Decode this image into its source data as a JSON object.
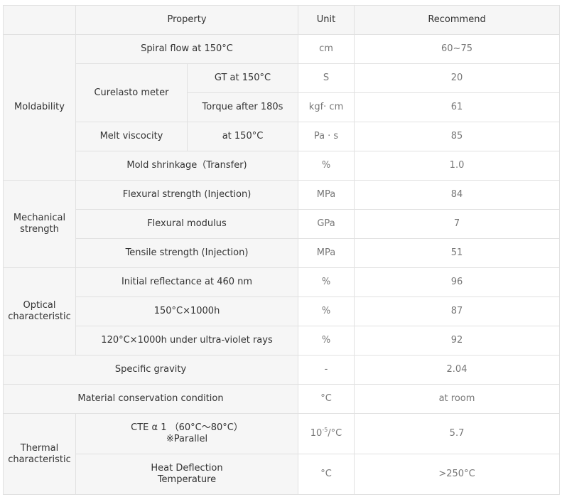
{
  "header": {
    "property": "Property",
    "unit": "Unit",
    "recommend": "Recommend"
  },
  "groups": {
    "moldability": "Moldability",
    "mechanical": "Mechanical\nstrength",
    "optical": "Optical\ncharacteristic",
    "thermal": "Thermal\ncharacteristic"
  },
  "rows": {
    "spiral": {
      "property": "Spiral flow at 150°C",
      "unit": "cm",
      "value": "60~75"
    },
    "curelasto": {
      "label": "Curelasto meter"
    },
    "gt": {
      "property": "GT at 150°C",
      "unit": "S",
      "value": "20"
    },
    "torque": {
      "property": "Torque after 180s",
      "unit": "kgf· cm",
      "value": "61"
    },
    "melt": {
      "label": "Melt viscocity",
      "property": "at 150°C",
      "unit": "Pa · s",
      "value": "85"
    },
    "shrink": {
      "property": "Mold shrinkage（Transfer)",
      "unit": "%",
      "value": "1.0"
    },
    "flex_strength": {
      "property": "Flexural strength (Injection)",
      "unit": "MPa",
      "value": "84"
    },
    "flex_modulus": {
      "property": "Flexural modulus",
      "unit": "GPa",
      "value": "7"
    },
    "tensile": {
      "property": "Tensile strength (Injection)",
      "unit": "MPa",
      "value": "51"
    },
    "reflect": {
      "property": "Initial reflectance at 460 nm",
      "unit": "%",
      "value": "96"
    },
    "heat1000": {
      "property": "150°C×1000h",
      "unit": "%",
      "value": "87"
    },
    "uv1000": {
      "property": "120°C×1000h under ultra-violet rays",
      "unit": "%",
      "value": "92"
    },
    "gravity": {
      "property": "Specific gravity",
      "unit": "-",
      "value": "2.04"
    },
    "conservation": {
      "property": "Material conservation condition",
      "unit": "°C",
      "value": "at room"
    },
    "cte": {
      "property": "CTE α 1 （60°C～80°C）\n※Parallel",
      "unit_base": "10",
      "unit_exp": "-5",
      "unit_tail": "/°C",
      "value": "5.7"
    },
    "hdt": {
      "property": "Heat Deflection\nTemperature",
      "unit": "°C",
      "value": ">250°C"
    }
  }
}
